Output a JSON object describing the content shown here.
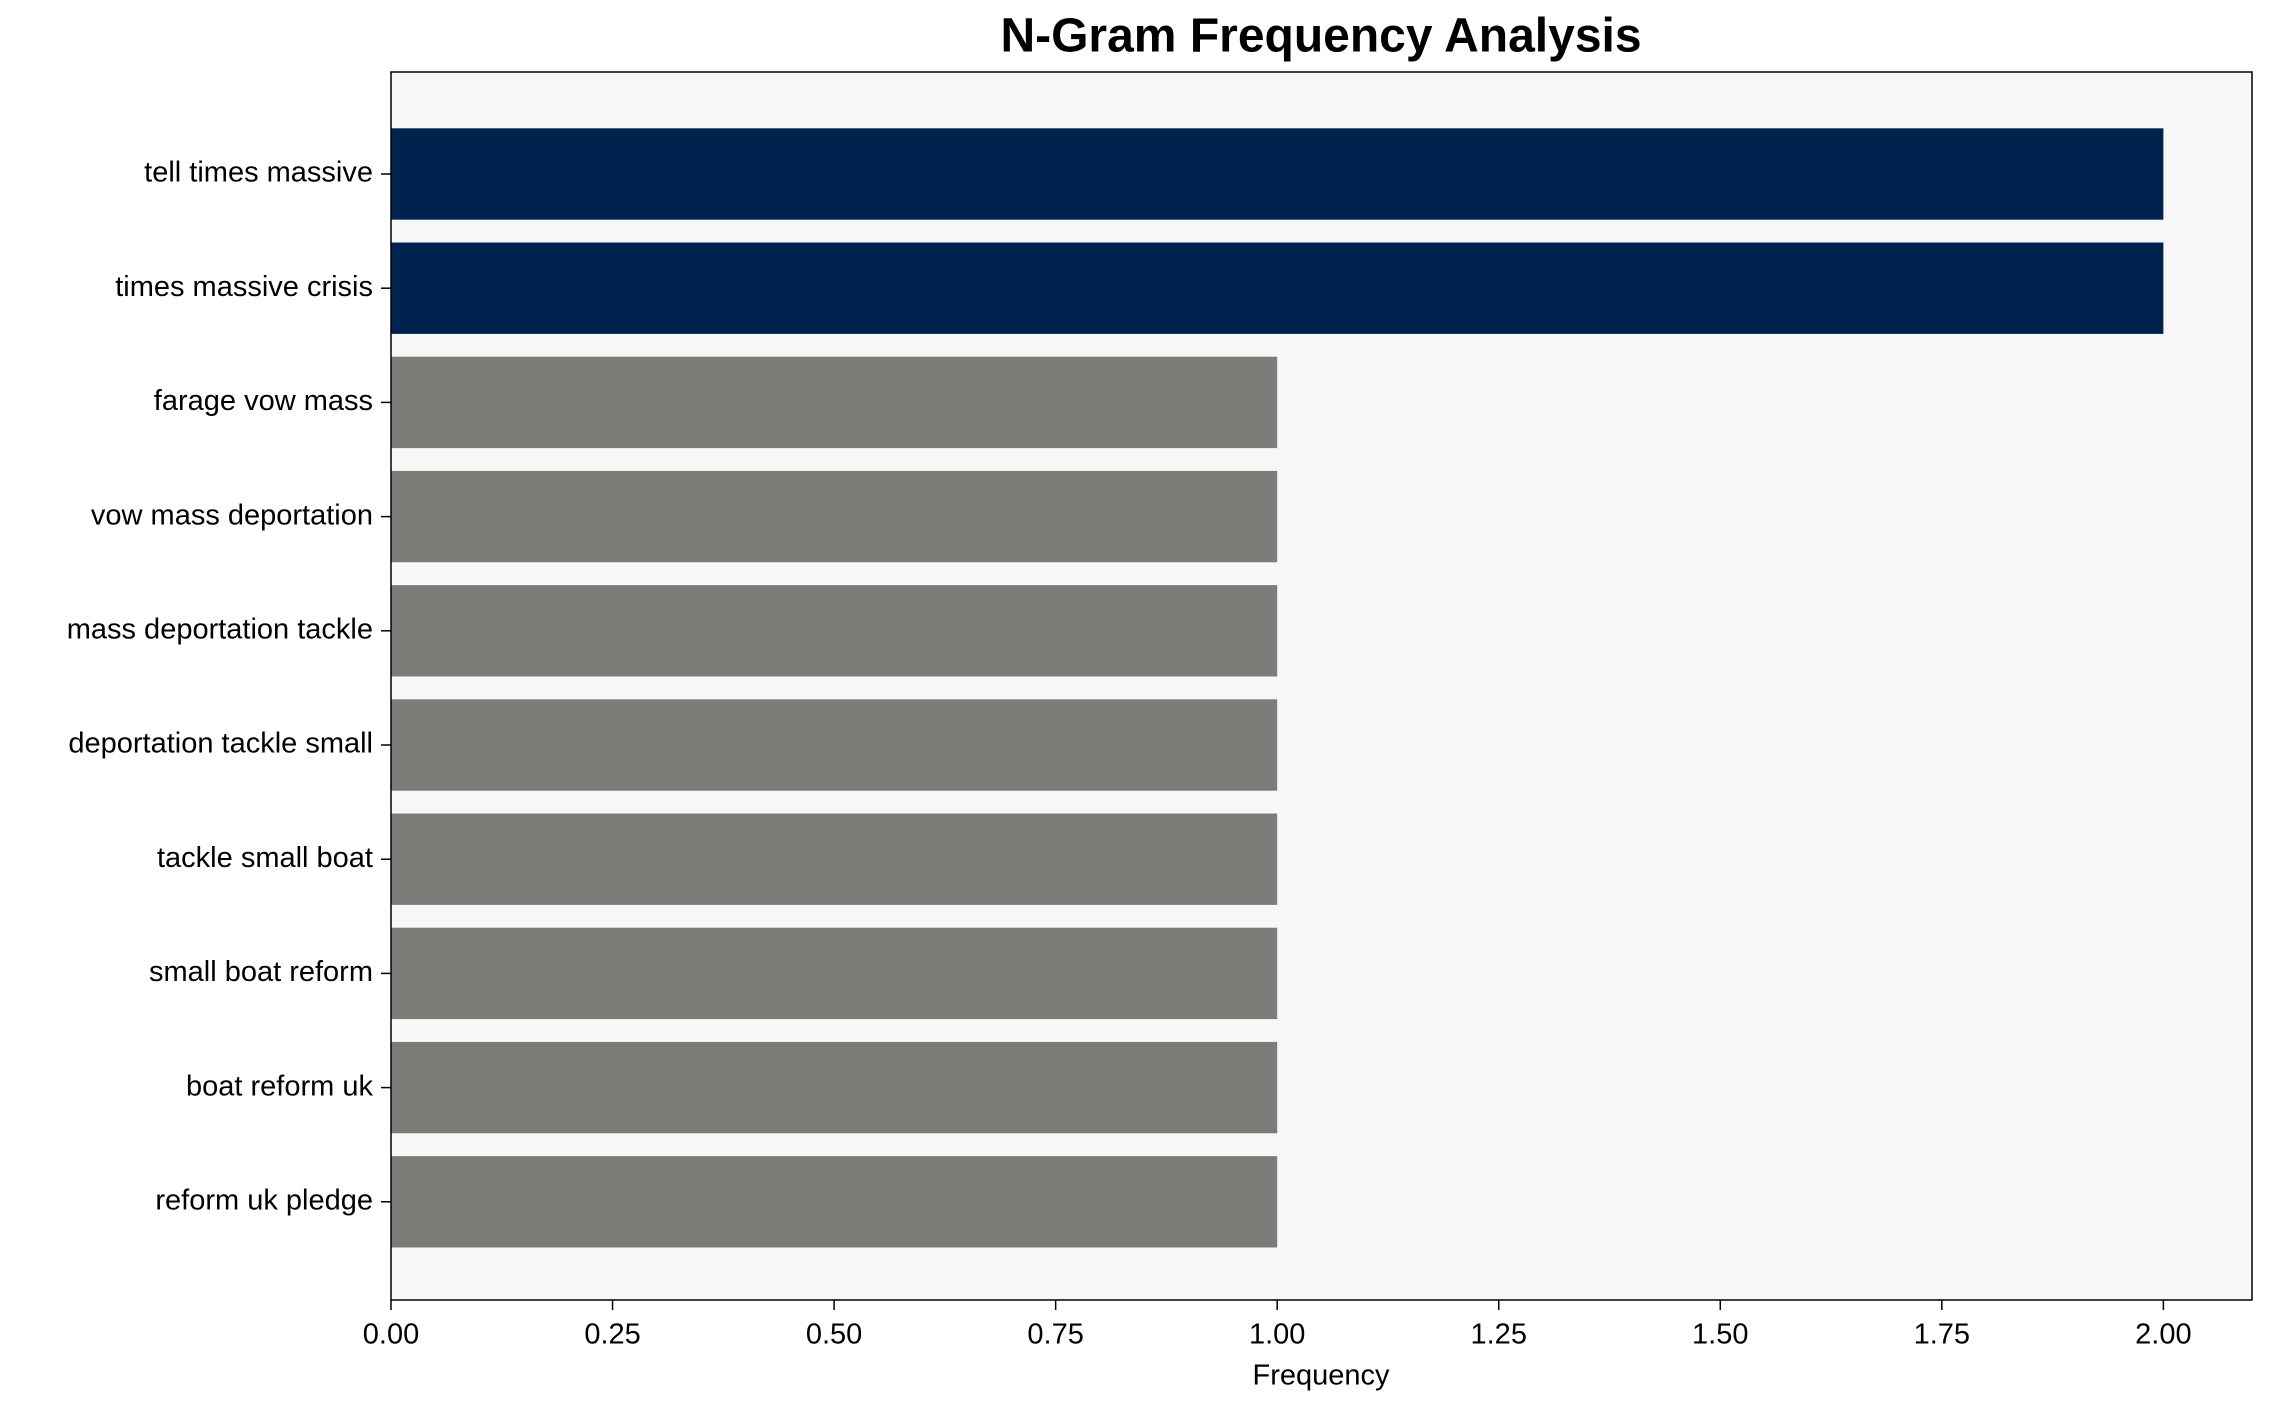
{
  "chart_data": {
    "type": "barh",
    "title": "N-Gram Frequency Analysis",
    "xlabel": "Frequency",
    "categories": [
      "tell times massive",
      "times massive crisis",
      "farage vow mass",
      "vow mass deportation",
      "mass deportation tackle",
      "deportation tackle small",
      "tackle small boat",
      "small boat reform",
      "boat reform uk",
      "reform uk pledge"
    ],
    "values": [
      2,
      2,
      1,
      1,
      1,
      1,
      1,
      1,
      1,
      1
    ],
    "colors": [
      "#00224e",
      "#00224e",
      "#7c7b78",
      "#7c7b78",
      "#7c7b78",
      "#7c7b78",
      "#7c7b78",
      "#7c7b78",
      "#7c7b78",
      "#7c7b78"
    ],
    "xlim": [
      0,
      2.1
    ],
    "xticks": [
      {
        "value": 0,
        "label": "0.00"
      },
      {
        "value": 0.25,
        "label": "0.25"
      },
      {
        "value": 0.5,
        "label": "0.50"
      },
      {
        "value": 0.75,
        "label": "0.75"
      },
      {
        "value": 1,
        "label": "1.00"
      },
      {
        "value": 1.25,
        "label": "1.25"
      },
      {
        "value": 1.5,
        "label": "1.50"
      },
      {
        "value": 1.75,
        "label": "1.75"
      },
      {
        "value": 2,
        "label": "2.00"
      }
    ]
  }
}
